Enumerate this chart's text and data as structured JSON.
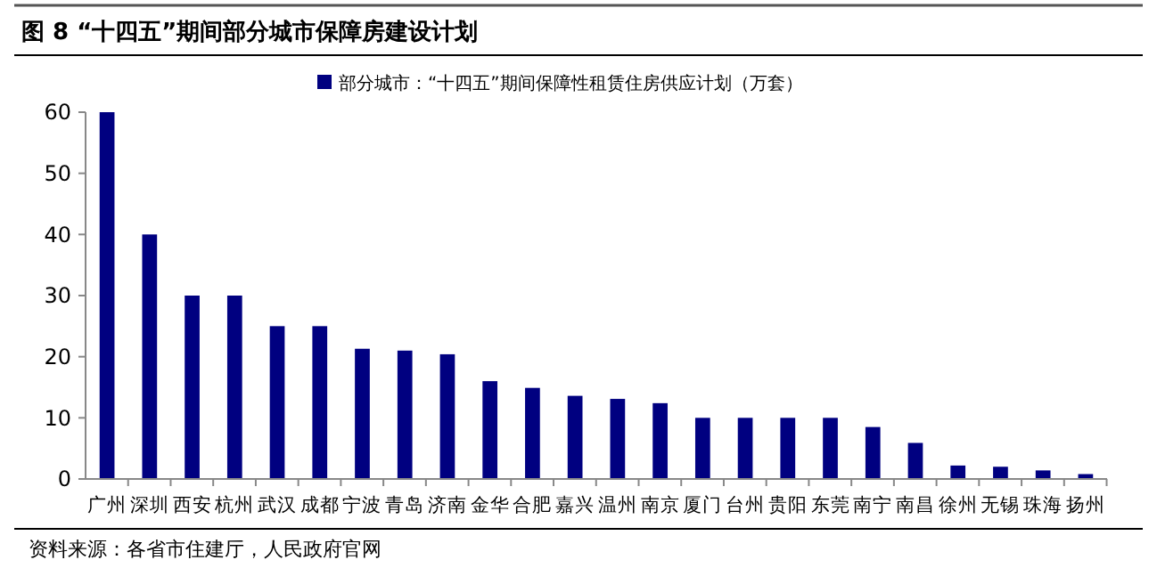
{
  "chart_data": {
    "type": "bar",
    "title": "图 8 “十四五”期间部分城市保障房建设计划",
    "categories": [
      "广州",
      "深圳",
      "西安",
      "杭州",
      "武汉",
      "成都",
      "宁波",
      "青岛",
      "济南",
      "金华",
      "合肥",
      "嘉兴",
      "温州",
      "南京",
      "厦门",
      "台州",
      "贵阳",
      "东莞",
      "南宁",
      "南昌",
      "徐州",
      "无锡",
      "珠海",
      "扬州"
    ],
    "series": [
      {
        "name": "部分城市：“十四五”期间保障性租赁住房供应计划（万套）",
        "color": "#000080",
        "values": [
          60,
          40,
          30,
          30,
          25,
          25,
          21.3,
          21,
          20.4,
          16,
          14.9,
          13.6,
          13.1,
          12.4,
          10,
          10,
          10,
          10,
          8.5,
          5.9,
          2.2,
          2,
          1.4,
          0.8
        ]
      }
    ],
    "ylim": [
      0,
      60
    ],
    "yticks": [
      0,
      10,
      20,
      30,
      40,
      50,
      60
    ],
    "grid": false,
    "legend": "top",
    "annotations": [
      "资料来源：各省市住建厅，人民政府官网"
    ]
  }
}
